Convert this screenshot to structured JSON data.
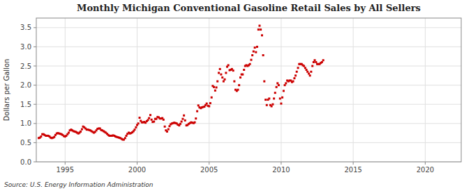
{
  "chart_data": {
    "type": "scatter",
    "title": "Monthly Michigan Conventional Gasoline Retail Sales by All Sellers",
    "ylabel": "Dollars per Gallon",
    "source": "Source: U.S. Energy Information Administration",
    "color": "#cc0000",
    "marker": "square",
    "grid": true,
    "xlim": [
      1993.0,
      2022.5
    ],
    "ylim": [
      0.0,
      3.75
    ],
    "xticks": [
      1995,
      2000,
      2005,
      2010,
      2015,
      2020
    ],
    "yticks": [
      {
        "value": 0.0,
        "label": "0.0"
      },
      0.5,
      {
        "value": 1.0,
        "label": "1.0"
      },
      1.5,
      {
        "value": 2.0,
        "label": "2.0"
      },
      2.5,
      {
        "value": 3.0,
        "label": "3.0"
      },
      3.5
    ],
    "x": [
      1993.17,
      1993.25,
      1993.33,
      1993.42,
      1993.5,
      1993.58,
      1993.67,
      1993.75,
      1993.83,
      1993.92,
      1994.0,
      1994.08,
      1994.17,
      1994.25,
      1994.33,
      1994.42,
      1994.5,
      1994.58,
      1994.67,
      1994.75,
      1994.83,
      1994.92,
      1995.0,
      1995.08,
      1995.17,
      1995.25,
      1995.33,
      1995.42,
      1995.5,
      1995.58,
      1995.67,
      1995.75,
      1995.83,
      1995.92,
      1996.0,
      1996.08,
      1996.17,
      1996.25,
      1996.33,
      1996.42,
      1996.5,
      1996.58,
      1996.67,
      1996.75,
      1996.83,
      1996.92,
      1997.0,
      1997.08,
      1997.17,
      1997.25,
      1997.33,
      1997.42,
      1997.5,
      1997.58,
      1997.67,
      1997.75,
      1997.83,
      1997.92,
      1998.0,
      1998.08,
      1998.17,
      1998.25,
      1998.33,
      1998.42,
      1998.5,
      1998.58,
      1998.67,
      1998.75,
      1998.83,
      1998.92,
      1999.0,
      1999.08,
      1999.17,
      1999.25,
      1999.33,
      1999.42,
      1999.5,
      1999.58,
      1999.67,
      1999.75,
      1999.83,
      1999.92,
      2000.0,
      2000.08,
      2000.17,
      2000.25,
      2000.33,
      2000.42,
      2000.5,
      2000.58,
      2000.67,
      2000.75,
      2000.83,
      2000.92,
      2001.0,
      2001.08,
      2001.17,
      2001.25,
      2001.33,
      2001.42,
      2001.5,
      2001.58,
      2001.67,
      2001.75,
      2001.83,
      2001.92,
      2002.0,
      2002.08,
      2002.17,
      2002.25,
      2002.33,
      2002.42,
      2002.5,
      2002.58,
      2002.67,
      2002.75,
      2002.83,
      2002.92,
      2003.0,
      2003.08,
      2003.17,
      2003.25,
      2003.33,
      2003.42,
      2003.5,
      2003.58,
      2003.67,
      2003.75,
      2003.83,
      2003.92,
      2004.0,
      2004.08,
      2004.17,
      2004.25,
      2004.33,
      2004.42,
      2004.5,
      2004.58,
      2004.67,
      2004.75,
      2004.83,
      2004.92,
      2005.0,
      2005.08,
      2005.17,
      2005.25,
      2005.33,
      2005.42,
      2005.5,
      2005.58,
      2005.67,
      2005.75,
      2005.83,
      2005.92,
      2006.0,
      2006.08,
      2006.17,
      2006.25,
      2006.33,
      2006.42,
      2006.5,
      2006.58,
      2006.67,
      2006.75,
      2006.83,
      2006.92,
      2007.0,
      2007.08,
      2007.17,
      2007.25,
      2007.33,
      2007.42,
      2007.5,
      2007.58,
      2007.67,
      2007.75,
      2007.83,
      2007.92,
      2008.0,
      2008.08,
      2008.17,
      2008.25,
      2008.33,
      2008.42,
      2008.5,
      2008.58,
      2008.67,
      2008.75,
      2008.83,
      2008.92,
      2009.0,
      2009.08,
      2009.17,
      2009.25,
      2009.33,
      2009.42,
      2009.5,
      2009.58,
      2009.67,
      2009.75,
      2009.83,
      2009.92,
      2010.0,
      2010.08,
      2010.17,
      2010.25,
      2010.33,
      2010.42,
      2010.5,
      2010.58,
      2010.67,
      2010.75,
      2010.83,
      2010.92,
      2011.0,
      2011.08,
      2011.17,
      2011.25,
      2011.33,
      2011.42,
      2011.5,
      2011.58,
      2011.67,
      2011.75,
      2011.83,
      2011.92,
      2012.0,
      2012.08,
      2012.17,
      2012.25,
      2012.33,
      2012.42,
      2012.5,
      2012.58,
      2012.67,
      2012.75,
      2012.83,
      2012.92
    ],
    "values": [
      0.62,
      0.63,
      0.66,
      0.72,
      0.72,
      0.7,
      0.68,
      0.68,
      0.68,
      0.66,
      0.63,
      0.62,
      0.63,
      0.65,
      0.7,
      0.74,
      0.75,
      0.74,
      0.73,
      0.72,
      0.7,
      0.67,
      0.66,
      0.68,
      0.72,
      0.76,
      0.82,
      0.84,
      0.82,
      0.8,
      0.79,
      0.78,
      0.76,
      0.74,
      0.76,
      0.79,
      0.85,
      0.92,
      0.9,
      0.87,
      0.84,
      0.84,
      0.83,
      0.82,
      0.8,
      0.78,
      0.76,
      0.78,
      0.82,
      0.86,
      0.87,
      0.87,
      0.83,
      0.82,
      0.8,
      0.78,
      0.76,
      0.73,
      0.7,
      0.68,
      0.68,
      0.68,
      0.69,
      0.68,
      0.66,
      0.65,
      0.64,
      0.63,
      0.62,
      0.6,
      0.58,
      0.58,
      0.62,
      0.68,
      0.73,
      0.76,
      0.74,
      0.75,
      0.77,
      0.8,
      0.84,
      0.9,
      0.96,
      1.0,
      1.15,
      1.07,
      1.03,
      1.03,
      1.04,
      1.02,
      1.06,
      1.09,
      1.14,
      1.22,
      1.1,
      1.04,
      1.05,
      1.12,
      1.12,
      1.17,
      1.16,
      1.13,
      1.13,
      1.14,
      1.1,
      0.92,
      0.82,
      0.79,
      0.85,
      0.93,
      0.98,
      1.0,
      1.01,
      1.02,
      1.01,
      1.0,
      0.97,
      0.95,
      0.99,
      1.05,
      1.12,
      1.21,
      1.08,
      0.95,
      0.96,
      0.99,
      1.01,
      1.03,
      1.02,
      1.01,
      1.03,
      1.13,
      1.32,
      1.47,
      1.42,
      1.4,
      1.42,
      1.43,
      1.44,
      1.48,
      1.52,
      1.46,
      1.45,
      1.53,
      1.68,
      1.98,
      1.95,
      1.86,
      1.94,
      2.1,
      2.32,
      2.42,
      2.28,
      2.2,
      2.1,
      2.15,
      2.32,
      2.48,
      2.52,
      2.39,
      2.4,
      2.42,
      2.38,
      2.1,
      1.88,
      1.85,
      1.88,
      2.0,
      2.2,
      2.28,
      2.28,
      2.4,
      2.5,
      2.52,
      2.5,
      2.52,
      2.55,
      2.66,
      2.78,
      2.88,
      2.98,
      2.86,
      3.0,
      3.45,
      3.55,
      3.45,
      3.3,
      2.78,
      2.1,
      1.62,
      1.48,
      1.62,
      1.65,
      1.48,
      1.45,
      1.5,
      1.65,
      1.8,
      1.95,
      2.05,
      2.0,
      1.65,
      1.52,
      1.68,
      1.85,
      2.0,
      2.05,
      2.12,
      2.1,
      2.12,
      2.12,
      2.08,
      2.1,
      2.18,
      2.25,
      2.35,
      2.45,
      2.55,
      2.55,
      2.55,
      2.52,
      2.5,
      2.45,
      2.4,
      2.35,
      2.3,
      2.25,
      2.35,
      2.5,
      2.6,
      2.65,
      2.6,
      2.55,
      2.55,
      2.55,
      2.58,
      2.6,
      2.65
    ]
  }
}
